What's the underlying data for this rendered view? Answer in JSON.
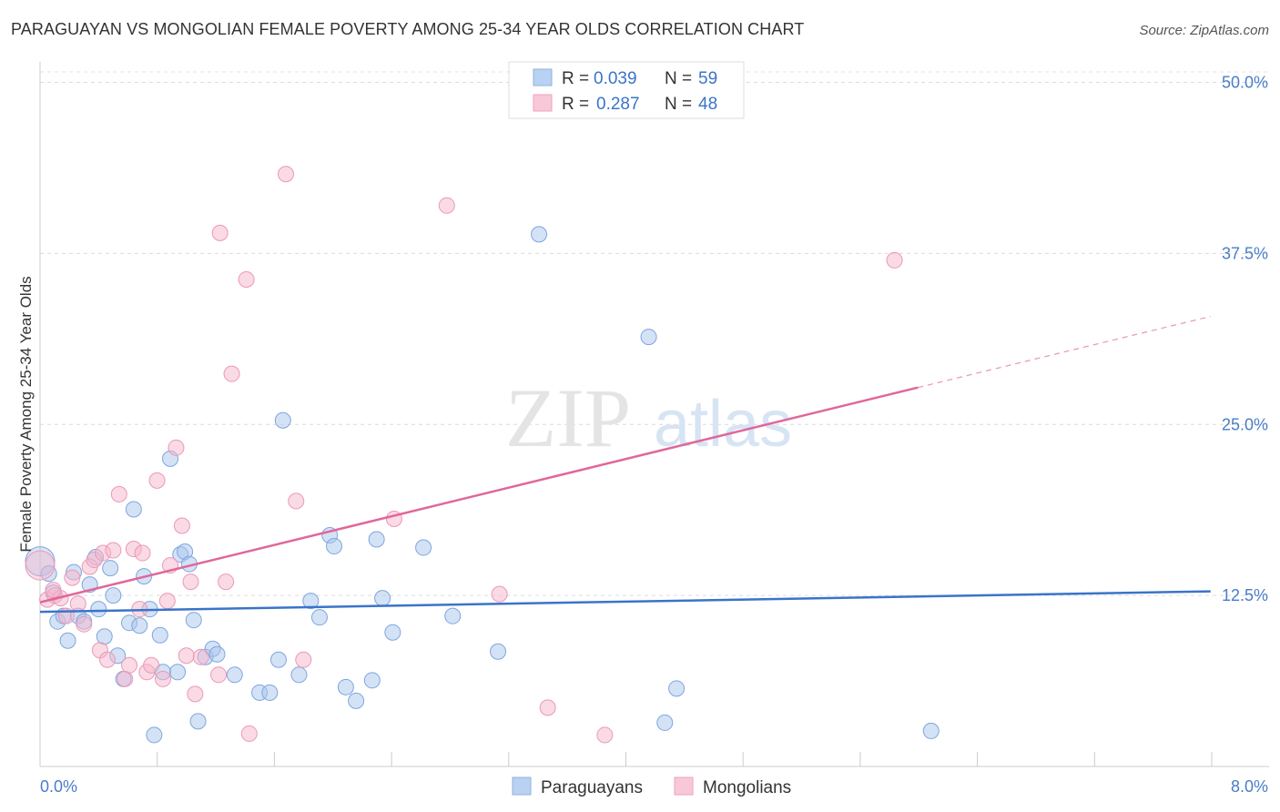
{
  "title": "PARAGUAYAN VS MONGOLIAN FEMALE POVERTY AMONG 25-34 YEAR OLDS CORRELATION CHART",
  "source": "Source: ZipAtlas.com",
  "watermark": {
    "zip": "ZIP",
    "atlas": "atlas"
  },
  "chart_data": {
    "type": "scatter",
    "title": "PARAGUAYAN VS MONGOLIAN FEMALE POVERTY AMONG 25-34 YEAR OLDS CORRELATION CHART",
    "xlabel": "",
    "ylabel": "Female Poverty Among 25-34 Year Olds",
    "xlim": [
      0,
      8.4
    ],
    "ylim": [
      0,
      51.5
    ],
    "x_tick_labels": [
      "0.0%",
      "8.0%"
    ],
    "y_ticks": [
      12.5,
      25.0,
      37.5,
      50.0
    ],
    "y_tick_labels": [
      "12.5%",
      "25.0%",
      "37.5%",
      "50.0%"
    ],
    "grid": true,
    "legend_position": "top-center",
    "series": [
      {
        "name": "Paraguayans",
        "color": "#a9c6ee",
        "line_color": "#3a74c9",
        "R": "0.039",
        "N": "59",
        "trend": {
          "x0": 0.0,
          "y0": 11.3,
          "x1": 8.0,
          "y1": 12.8
        },
        "points": [
          [
            0.0,
            15.0
          ],
          [
            0.06,
            14.1
          ],
          [
            0.09,
            12.7
          ],
          [
            0.12,
            10.6
          ],
          [
            0.16,
            11.0
          ],
          [
            0.19,
            9.2
          ],
          [
            0.23,
            14.2
          ],
          [
            0.26,
            11.0
          ],
          [
            0.3,
            10.6
          ],
          [
            0.34,
            13.3
          ],
          [
            0.38,
            15.3
          ],
          [
            0.4,
            11.5
          ],
          [
            0.44,
            9.5
          ],
          [
            0.48,
            14.5
          ],
          [
            0.5,
            12.5
          ],
          [
            0.53,
            8.1
          ],
          [
            0.57,
            6.4
          ],
          [
            0.61,
            10.5
          ],
          [
            0.64,
            18.8
          ],
          [
            0.68,
            10.3
          ],
          [
            0.71,
            13.9
          ],
          [
            0.75,
            11.5
          ],
          [
            0.78,
            2.3
          ],
          [
            0.82,
            9.6
          ],
          [
            0.84,
            6.9
          ],
          [
            0.89,
            22.5
          ],
          [
            0.94,
            6.9
          ],
          [
            0.96,
            15.5
          ],
          [
            0.99,
            15.7
          ],
          [
            1.02,
            14.8
          ],
          [
            1.05,
            10.7
          ],
          [
            1.08,
            3.3
          ],
          [
            1.13,
            8.0
          ],
          [
            1.18,
            8.6
          ],
          [
            1.21,
            8.2
          ],
          [
            1.33,
            6.7
          ],
          [
            1.5,
            5.4
          ],
          [
            1.57,
            5.4
          ],
          [
            1.63,
            7.8
          ],
          [
            1.66,
            25.3
          ],
          [
            1.77,
            6.7
          ],
          [
            1.85,
            12.1
          ],
          [
            1.91,
            10.9
          ],
          [
            1.98,
            16.9
          ],
          [
            2.01,
            16.1
          ],
          [
            2.09,
            5.8
          ],
          [
            2.16,
            4.8
          ],
          [
            2.27,
            6.3
          ],
          [
            2.3,
            16.6
          ],
          [
            2.34,
            12.3
          ],
          [
            2.41,
            9.8
          ],
          [
            2.62,
            16.0
          ],
          [
            2.82,
            11.0
          ],
          [
            3.13,
            8.4
          ],
          [
            3.41,
            38.9
          ],
          [
            4.16,
            31.4
          ],
          [
            4.27,
            3.2
          ],
          [
            4.35,
            5.7
          ],
          [
            6.09,
            2.6
          ]
        ]
      },
      {
        "name": "Mongolians",
        "color": "#f6b6cc",
        "line_color": "#e0679a",
        "R": "0.287",
        "N": "48",
        "trend": {
          "x0": 0.0,
          "y0": 12.0,
          "x1": 6.0,
          "y1": 27.7
        },
        "trend_dashed_to": {
          "x": 8.0,
          "y": 32.9
        },
        "points": [
          [
            0.0,
            14.7
          ],
          [
            0.05,
            12.2
          ],
          [
            0.1,
            12.5
          ],
          [
            0.14,
            12.3
          ],
          [
            0.18,
            11.0
          ],
          [
            0.22,
            13.8
          ],
          [
            0.26,
            11.9
          ],
          [
            0.3,
            10.4
          ],
          [
            0.34,
            14.6
          ],
          [
            0.37,
            15.1
          ],
          [
            0.41,
            8.5
          ],
          [
            0.43,
            15.6
          ],
          [
            0.46,
            7.8
          ],
          [
            0.5,
            15.8
          ],
          [
            0.54,
            19.9
          ],
          [
            0.58,
            6.4
          ],
          [
            0.61,
            7.4
          ],
          [
            0.64,
            15.9
          ],
          [
            0.68,
            11.5
          ],
          [
            0.7,
            15.6
          ],
          [
            0.73,
            6.9
          ],
          [
            0.76,
            7.4
          ],
          [
            0.8,
            20.9
          ],
          [
            0.84,
            6.4
          ],
          [
            0.87,
            12.1
          ],
          [
            0.89,
            14.7
          ],
          [
            0.93,
            23.3
          ],
          [
            0.97,
            17.6
          ],
          [
            1.0,
            8.1
          ],
          [
            1.03,
            13.5
          ],
          [
            1.06,
            5.3
          ],
          [
            1.1,
            8.0
          ],
          [
            1.22,
            6.7
          ],
          [
            1.23,
            39.0
          ],
          [
            1.27,
            13.5
          ],
          [
            1.31,
            28.7
          ],
          [
            1.41,
            35.6
          ],
          [
            1.43,
            2.4
          ],
          [
            1.68,
            43.3
          ],
          [
            1.75,
            19.4
          ],
          [
            1.8,
            7.8
          ],
          [
            2.42,
            18.1
          ],
          [
            3.14,
            12.6
          ],
          [
            3.47,
            4.3
          ],
          [
            2.78,
            41.0
          ],
          [
            3.86,
            2.3
          ],
          [
            5.84,
            37.0
          ],
          [
            0.09,
            12.9
          ]
        ]
      }
    ]
  }
}
